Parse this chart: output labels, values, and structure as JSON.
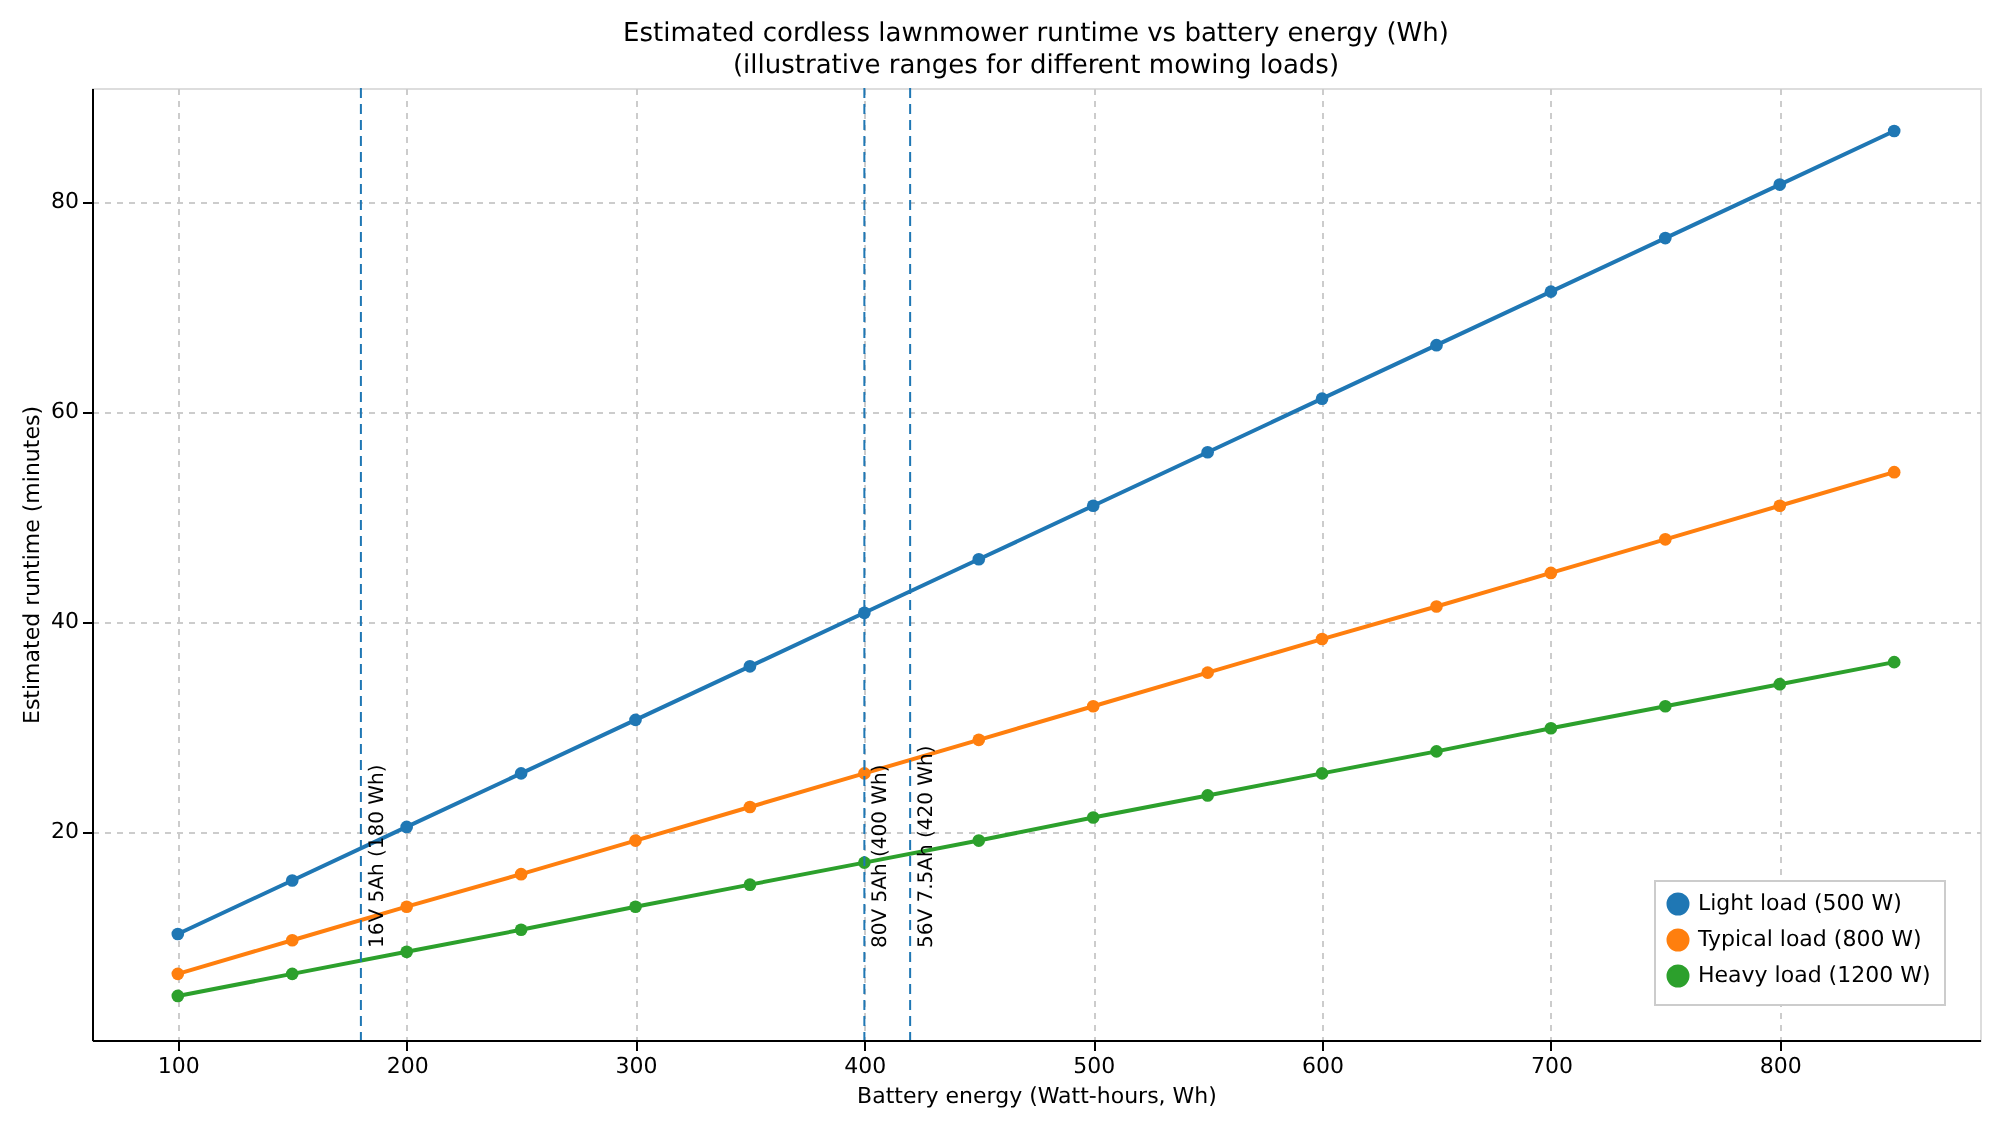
{
  "chart_data": {
    "type": "line",
    "title": "Estimated cordless lawnmower runtime vs battery energy (Wh)",
    "subtitle": "(illustrative ranges for different mowing loads)",
    "xlabel": "Battery energy (Watt-hours, Wh)",
    "ylabel": "Estimated runtime (minutes)",
    "x": [
      100,
      150,
      200,
      250,
      300,
      350,
      400,
      450,
      500,
      550,
      600,
      650,
      700,
      750,
      800,
      850
    ],
    "series": [
      {
        "name": "Light load (500 W)",
        "color": "#1f77b4",
        "values": [
          10.2,
          15.3,
          20.4,
          25.5,
          30.6,
          35.7,
          40.8,
          45.9,
          51.0,
          56.1,
          61.2,
          66.3,
          71.4,
          76.5,
          81.6,
          86.7
        ]
      },
      {
        "name": "Typical load (800 W)",
        "color": "#ff7f0e",
        "values": [
          6.4,
          9.6,
          12.8,
          15.9,
          19.1,
          22.3,
          25.5,
          28.7,
          31.9,
          35.1,
          38.3,
          41.4,
          44.6,
          47.8,
          51.0,
          54.2
        ]
      },
      {
        "name": "Heavy load (1200 W)",
        "color": "#2ca02c",
        "values": [
          4.3,
          6.4,
          8.5,
          10.6,
          12.8,
          14.9,
          17.0,
          19.1,
          21.3,
          23.4,
          25.5,
          27.6,
          29.8,
          31.9,
          34.0,
          36.1
        ]
      }
    ],
    "xlim": [
      62.5,
      887.5
    ],
    "xticks": [
      100,
      200,
      300,
      400,
      500,
      600,
      700,
      800
    ],
    "ylim": [
      0.1,
      90.8
    ],
    "yticks": [
      20,
      40,
      60,
      80
    ],
    "ref_lines": [
      {
        "axis": "x",
        "value": 180,
        "label": "16V 5Ah (180 Wh)",
        "color": "#1f77b4",
        "line_style": "dashed"
      },
      {
        "axis": "x",
        "value": 400,
        "label": "80V 5Ah (400 Wh)",
        "color": "#1f77b4",
        "line_style": "dashed"
      },
      {
        "axis": "x",
        "value": 420,
        "label": "56V 7.5Ah (420 Wh)",
        "color": "#1f77b4",
        "line_style": "dashed"
      }
    ],
    "grid": true,
    "legend": "bottom right",
    "marker": "circle",
    "line_style": "solid"
  }
}
